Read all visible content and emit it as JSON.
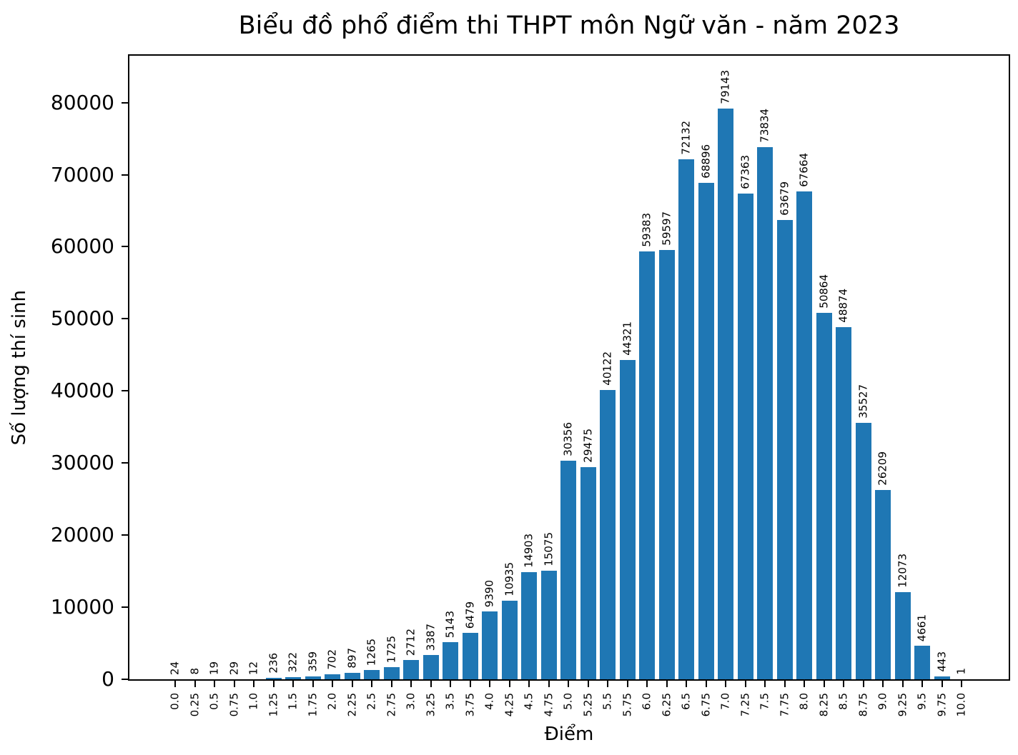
{
  "chart_data": {
    "type": "bar",
    "title": "Biểu đồ phổ điểm thi THPT môn Ngữ văn - năm 2023",
    "xlabel": "Điểm",
    "ylabel": "Số lượng thí sinh",
    "categories": [
      "0.0",
      "0.25",
      "0.5",
      "0.75",
      "1.0",
      "1.25",
      "1.5",
      "1.75",
      "2.0",
      "2.25",
      "2.5",
      "2.75",
      "3.0",
      "3.25",
      "3.5",
      "3.75",
      "4.0",
      "4.25",
      "4.5",
      "4.75",
      "5.0",
      "5.25",
      "5.5",
      "5.75",
      "6.0",
      "6.25",
      "6.5",
      "6.75",
      "7.0",
      "7.25",
      "7.5",
      "7.75",
      "8.0",
      "8.25",
      "8.5",
      "8.75",
      "9.0",
      "9.25",
      "9.5",
      "9.75",
      "10.0"
    ],
    "values": [
      24,
      8,
      19,
      29,
      12,
      236,
      322,
      359,
      702,
      897,
      1265,
      1725,
      2712,
      3387,
      5143,
      6479,
      9390,
      10935,
      14903,
      15075,
      30356,
      29475,
      40122,
      44321,
      59383,
      59597,
      72132,
      68896,
      79143,
      67363,
      73834,
      63679,
      67664,
      50864,
      48874,
      35527,
      26209,
      12073,
      4661,
      443,
      1
    ],
    "bar_value_labels_shown": true,
    "yticks": [
      0,
      10000,
      20000,
      30000,
      40000,
      50000,
      60000,
      70000,
      80000
    ],
    "ylim": [
      0,
      86500
    ],
    "grid": false,
    "legend_position": "none",
    "bar_color": "#1f77b4",
    "axis_color": "#000000",
    "background_color": "#ffffff"
  }
}
